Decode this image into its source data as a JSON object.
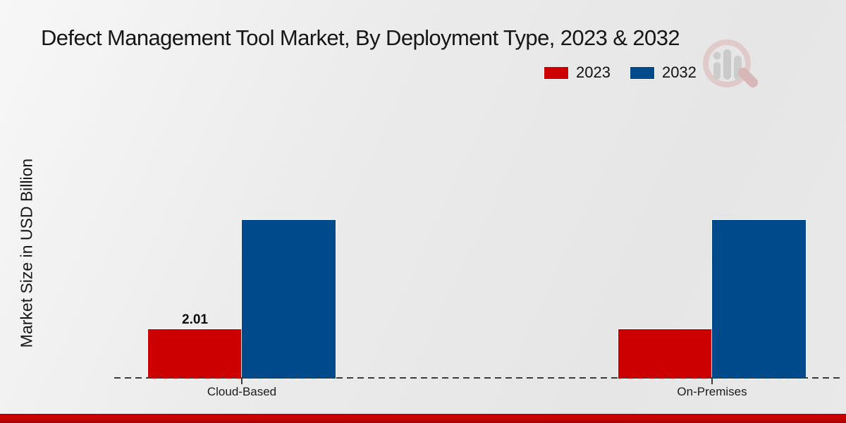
{
  "chart_data": {
    "type": "bar",
    "title": "Defect Management Tool Market, By Deployment Type, 2023 & 2032",
    "ylabel": "Market Size in USD Billion",
    "xlabel": "",
    "categories": [
      "Cloud-Based",
      "On-Premises"
    ],
    "series": [
      {
        "name": "2023",
        "color": "#cc0000",
        "values": [
          2.01,
          2.01
        ]
      },
      {
        "name": "2032",
        "color": "#004a8c",
        "values": [
          6.5,
          6.5
        ]
      }
    ],
    "value_labels": [
      {
        "series": "2023",
        "category": "Cloud-Based",
        "text": "2.01"
      }
    ],
    "ylim": [
      0,
      7.5
    ],
    "grid": false,
    "legend_position": "top-right",
    "baseline_style": "dashed"
  },
  "watermark": {
    "name": "market-research-magnifier-logo"
  },
  "theme": {
    "background": "#e9e9e9",
    "bar_red": "#cc0000",
    "bar_blue": "#004a8c",
    "text_color": "#161616",
    "baseline_color": "#3c3c3c",
    "bottom_strip_color": "#c00000"
  }
}
